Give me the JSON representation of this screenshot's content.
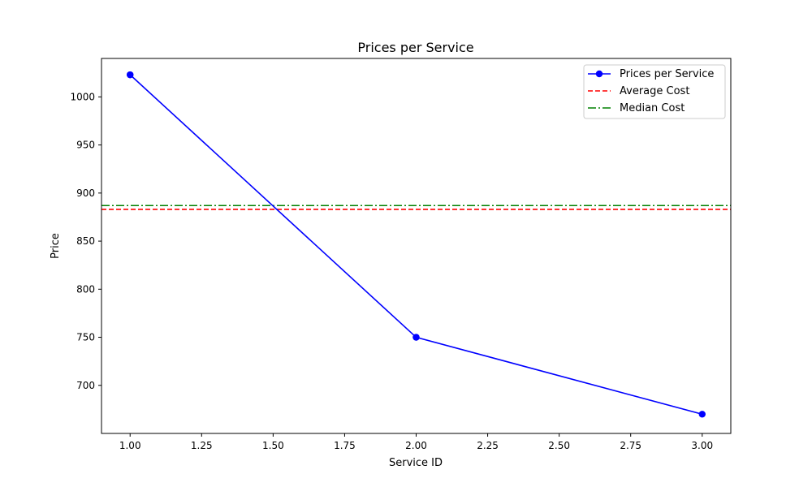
{
  "chart_data": {
    "type": "line",
    "title": "Prices per Service",
    "xlabel": "Service ID",
    "ylabel": "Price",
    "xlim": [
      0.9,
      3.1
    ],
    "ylim": [
      650,
      1040
    ],
    "xticks": [
      1.0,
      1.25,
      1.5,
      1.75,
      2.0,
      2.25,
      2.5,
      2.75,
      3.0
    ],
    "xtick_labels": [
      "1.00",
      "1.25",
      "1.50",
      "1.75",
      "2.00",
      "2.25",
      "2.50",
      "2.75",
      "3.00"
    ],
    "yticks": [
      700,
      750,
      800,
      850,
      900,
      950,
      1000
    ],
    "ytick_labels": [
      "700",
      "750",
      "800",
      "850",
      "900",
      "950",
      "1000"
    ],
    "grid": false,
    "legend_position": "top-right",
    "series": [
      {
        "name": "Prices per Service",
        "x": [
          1,
          1,
          2,
          2,
          3
        ],
        "y": [
          1023,
          1023,
          750,
          750,
          670
        ],
        "color": "#0000ff",
        "style": "solid",
        "marker": "circle"
      }
    ],
    "reference_lines": [
      {
        "name": "Average Cost",
        "y": 883,
        "color": "#ff0000",
        "style": "dashed"
      },
      {
        "name": "Median Cost",
        "y": 887,
        "color": "#008000",
        "style": "dashdot"
      }
    ]
  }
}
